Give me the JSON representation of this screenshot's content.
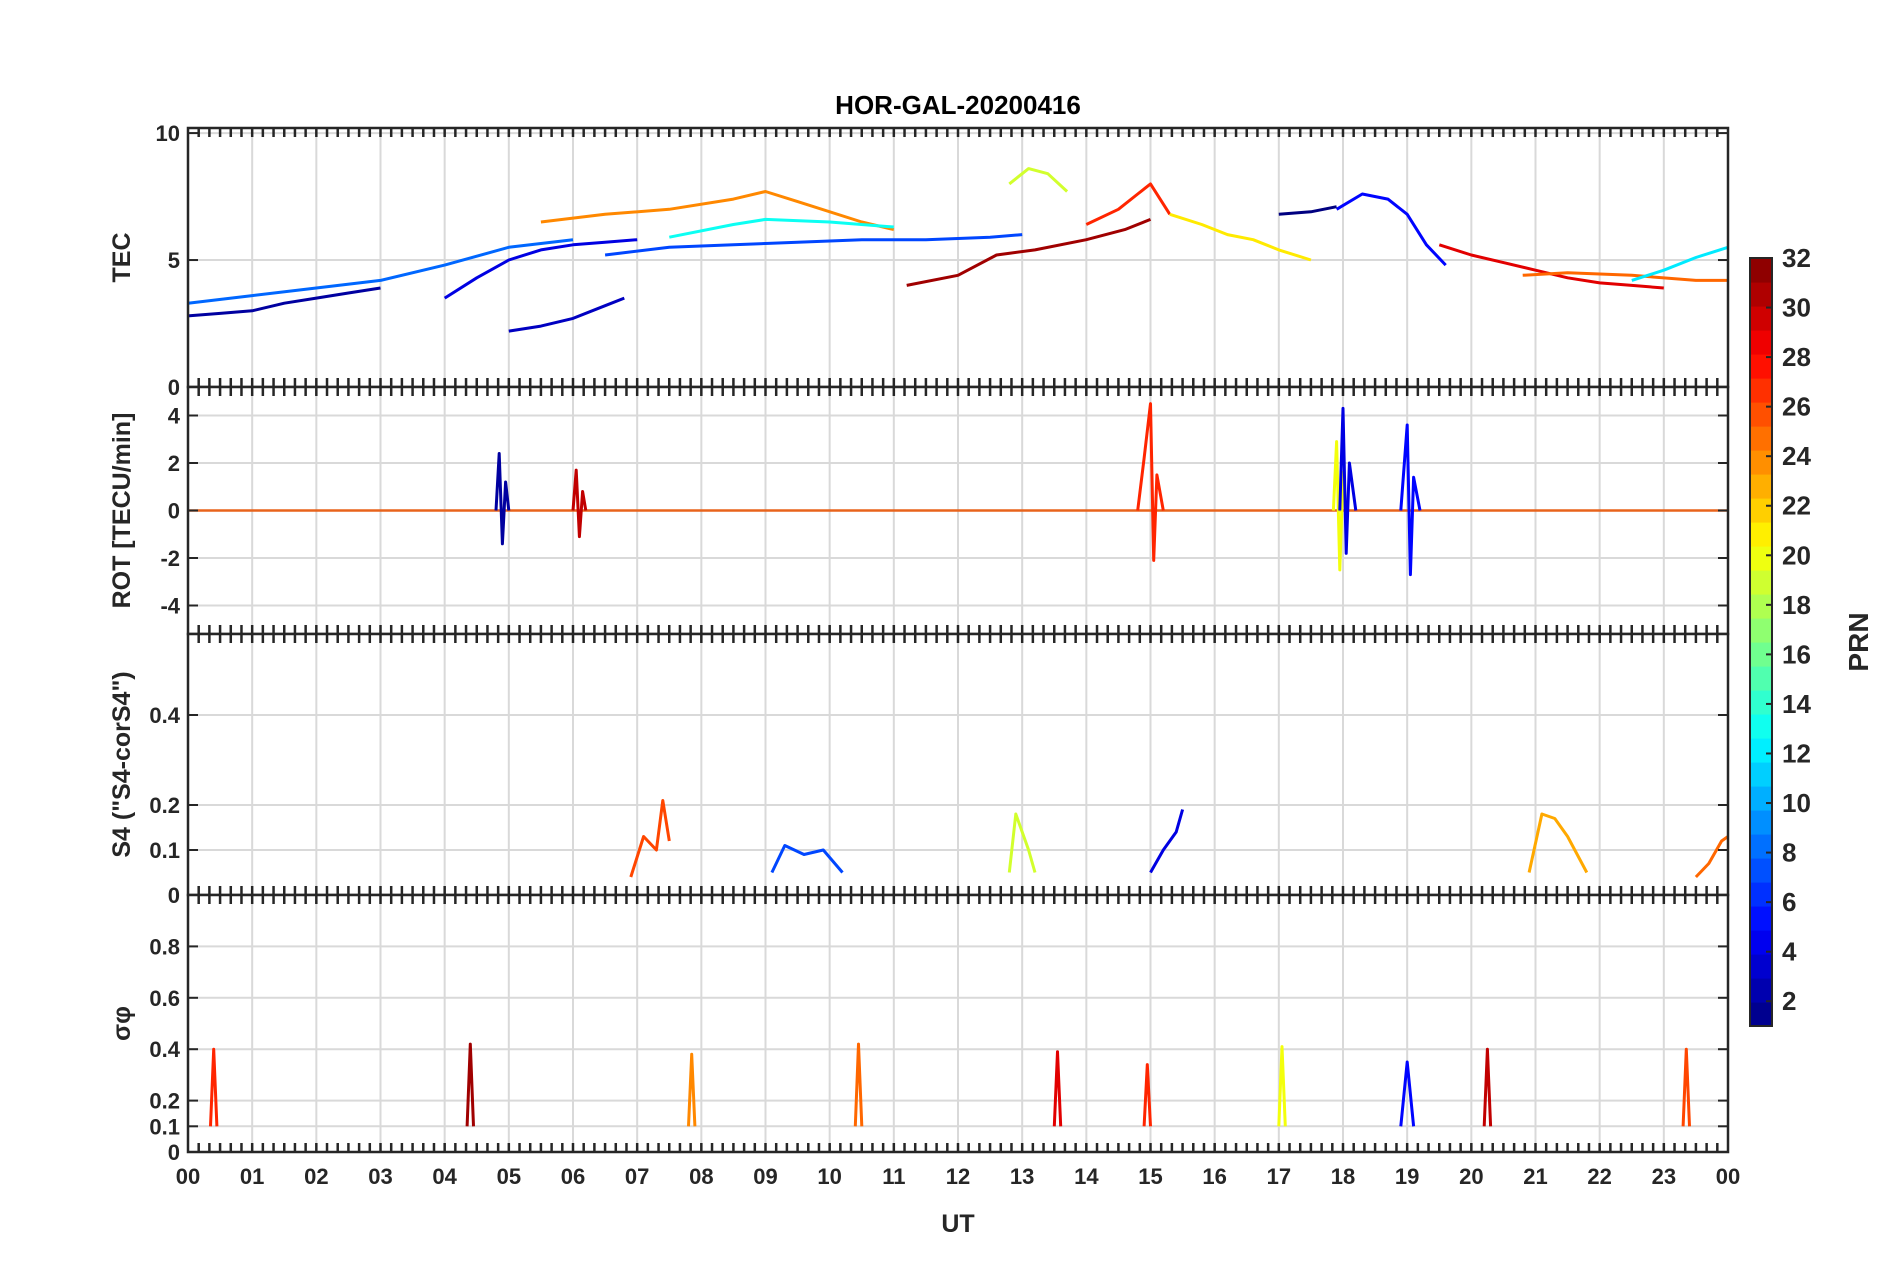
{
  "chart_data": {
    "type": "line",
    "title": "HOR-GAL-20200416",
    "xlabel": "UT",
    "x_ticks": [
      "00",
      "01",
      "02",
      "03",
      "04",
      "05",
      "06",
      "07",
      "08",
      "09",
      "10",
      "11",
      "12",
      "13",
      "14",
      "15",
      "16",
      "17",
      "18",
      "19",
      "20",
      "21",
      "22",
      "23",
      "00"
    ],
    "xlim": [
      0,
      24
    ],
    "grid": true,
    "panels": [
      {
        "id": "tec",
        "ylabel": "TEC",
        "ylim": [
          0,
          10.2
        ],
        "y_ticks": [
          0,
          5,
          10
        ],
        "series": [
          {
            "prn": 2,
            "x": [
              0,
              0.5,
              1,
              1.5,
              2,
              2.5,
              3
            ],
            "y": [
              2.8,
              2.9,
              3.0,
              3.3,
              3.5,
              3.7,
              3.9
            ]
          },
          {
            "prn": 4,
            "x": [
              4.0,
              4.5,
              5.0,
              5.5,
              6.0,
              6.5,
              7.0
            ],
            "y": [
              3.5,
              4.3,
              5.0,
              5.4,
              5.6,
              5.7,
              5.8
            ]
          },
          {
            "prn": 3,
            "x": [
              5.0,
              5.5,
              6.0,
              6.5,
              6.8
            ],
            "y": [
              2.2,
              2.4,
              2.7,
              3.2,
              3.5
            ]
          },
          {
            "prn": 8,
            "x": [
              0,
              1,
              2,
              3,
              4,
              5,
              6
            ],
            "y": [
              3.3,
              3.6,
              3.9,
              4.2,
              4.8,
              5.5,
              5.8
            ]
          },
          {
            "prn": 24,
            "x": [
              5.5,
              6.5,
              7.5,
              8.5,
              9.0,
              9.5,
              10.5,
              11.0
            ],
            "y": [
              6.5,
              6.8,
              7.0,
              7.4,
              7.7,
              7.3,
              6.5,
              6.2
            ]
          },
          {
            "prn": 7,
            "x": [
              6.5,
              7.5,
              8.5,
              9.5,
              10.5,
              11.5,
              12.5,
              13.0
            ],
            "y": [
              5.2,
              5.5,
              5.6,
              5.7,
              5.8,
              5.8,
              5.9,
              6.0
            ]
          },
          {
            "prn": 13,
            "x": [
              7.5,
              8.5,
              9.0,
              10.0,
              11.0
            ],
            "y": [
              5.9,
              6.4,
              6.6,
              6.5,
              6.3
            ]
          },
          {
            "prn": 31,
            "x": [
              11.2,
              12.0,
              12.6,
              13.2,
              14.0,
              14.6,
              15.0
            ],
            "y": [
              4.0,
              4.4,
              5.2,
              5.4,
              5.8,
              6.2,
              6.6
            ]
          },
          {
            "prn": 19,
            "x": [
              12.8,
              13.1,
              13.4,
              13.7
            ],
            "y": [
              8.0,
              8.6,
              8.4,
              7.7
            ]
          },
          {
            "prn": 27,
            "x": [
              14.0,
              14.5,
              14.8,
              15.0,
              15.3
            ],
            "y": [
              6.4,
              7.0,
              7.6,
              8.0,
              6.8
            ]
          },
          {
            "prn": 21,
            "x": [
              15.3,
              15.8,
              16.2,
              16.6,
              17.0,
              17.5
            ],
            "y": [
              6.8,
              6.4,
              6.0,
              5.8,
              5.4,
              5.0
            ]
          },
          {
            "prn": 5,
            "x": [
              17.9,
              18.3,
              18.7,
              19.0,
              19.3,
              19.6
            ],
            "y": [
              7.0,
              7.6,
              7.4,
              6.8,
              5.6,
              4.8
            ]
          },
          {
            "prn": 1,
            "x": [
              17.0,
              17.5,
              17.9
            ],
            "y": [
              6.8,
              6.9,
              7.1
            ]
          },
          {
            "prn": 29,
            "x": [
              19.5,
              20.0,
              20.5,
              21.0,
              21.5,
              22.0,
              22.5,
              23.0
            ],
            "y": [
              5.6,
              5.2,
              4.9,
              4.6,
              4.3,
              4.1,
              4.0,
              3.9
            ]
          },
          {
            "prn": 25,
            "x": [
              20.8,
              21.5,
              22.5,
              23.5,
              24.0
            ],
            "y": [
              4.4,
              4.5,
              4.4,
              4.2,
              4.2
            ]
          },
          {
            "prn": 12,
            "x": [
              22.5,
              23.0,
              23.5,
              24.0
            ],
            "y": [
              4.2,
              4.6,
              5.1,
              5.5
            ]
          }
        ]
      },
      {
        "id": "rot",
        "ylabel": "ROT [TECU/min]",
        "ylim": [
          -5.2,
          5.2
        ],
        "y_ticks": [
          -4,
          -2,
          0,
          2,
          4
        ],
        "series": [
          {
            "prn": 2,
            "x": [
              4.8,
              4.85,
              4.9,
              4.95,
              5.0
            ],
            "y": [
              0,
              2.4,
              -1.4,
              1.2,
              0
            ]
          },
          {
            "prn": 30,
            "x": [
              6.0,
              6.05,
              6.1,
              6.15,
              6.2
            ],
            "y": [
              0,
              1.7,
              -1.1,
              0.8,
              0
            ]
          },
          {
            "prn": 27,
            "x": [
              14.8,
              14.9,
              15.0,
              15.05,
              15.1,
              15.2
            ],
            "y": [
              0,
              2.2,
              4.5,
              -2.1,
              1.5,
              0
            ]
          },
          {
            "prn": 20,
            "x": [
              17.85,
              17.9,
              17.95,
              18.0,
              18.05
            ],
            "y": [
              0,
              2.9,
              -2.5,
              1.6,
              0
            ]
          },
          {
            "prn": 4,
            "x": [
              17.95,
              18.0,
              18.05,
              18.1,
              18.2
            ],
            "y": [
              0,
              4.3,
              -1.8,
              2.0,
              0
            ]
          },
          {
            "prn": 5,
            "x": [
              18.9,
              19.0,
              19.05,
              19.1,
              19.2
            ],
            "y": [
              0,
              3.6,
              -2.7,
              1.4,
              0
            ]
          }
        ]
      },
      {
        "id": "s4",
        "ylabel": "S4 (\"S4-corS4\")",
        "ylim": [
          0,
          0.58
        ],
        "y_ticks": [
          0,
          0.1,
          0.2,
          0.4
        ],
        "series": [
          {
            "prn": 26,
            "x": [
              6.9,
              7.1,
              7.3,
              7.4,
              7.5
            ],
            "y": [
              0.04,
              0.13,
              0.1,
              0.21,
              0.12
            ]
          },
          {
            "prn": 7,
            "x": [
              9.1,
              9.3,
              9.6,
              9.9,
              10.2
            ],
            "y": [
              0.05,
              0.11,
              0.09,
              0.1,
              0.05
            ]
          },
          {
            "prn": 19,
            "x": [
              12.8,
              12.9,
              13.0,
              13.1,
              13.2
            ],
            "y": [
              0.05,
              0.18,
              0.14,
              0.1,
              0.05
            ]
          },
          {
            "prn": 4,
            "x": [
              15.0,
              15.2,
              15.4,
              15.5
            ],
            "y": [
              0.05,
              0.1,
              0.14,
              0.19
            ]
          },
          {
            "prn": 23,
            "x": [
              20.9,
              21.1,
              21.3,
              21.5,
              21.8
            ],
            "y": [
              0.05,
              0.18,
              0.17,
              0.13,
              0.05
            ]
          },
          {
            "prn": 25,
            "x": [
              23.5,
              23.7,
              23.9,
              24.0
            ],
            "y": [
              0.04,
              0.07,
              0.12,
              0.13
            ]
          }
        ]
      },
      {
        "id": "sigphi",
        "ylabel": "σφ",
        "ylim": [
          0,
          1.0
        ],
        "y_ticks": [
          0,
          0.1,
          0.2,
          0.4,
          0.6,
          0.8
        ],
        "series": [
          {
            "prn": 27,
            "x": [
              0.35,
              0.4,
              0.45
            ],
            "y": [
              0.1,
              0.4,
              0.1
            ]
          },
          {
            "prn": 31,
            "x": [
              4.35,
              4.4,
              4.45
            ],
            "y": [
              0.1,
              0.42,
              0.1
            ]
          },
          {
            "prn": 24,
            "x": [
              7.8,
              7.85,
              7.9
            ],
            "y": [
              0.1,
              0.38,
              0.1
            ]
          },
          {
            "prn": 25,
            "x": [
              10.4,
              10.45,
              10.5
            ],
            "y": [
              0.1,
              0.42,
              0.1
            ]
          },
          {
            "prn": 29,
            "x": [
              13.5,
              13.55,
              13.6
            ],
            "y": [
              0.1,
              0.39,
              0.1
            ]
          },
          {
            "prn": 27,
            "x": [
              14.9,
              14.95,
              15.0
            ],
            "y": [
              0.1,
              0.34,
              0.1
            ]
          },
          {
            "prn": 20,
            "x": [
              17.0,
              17.05,
              17.1
            ],
            "y": [
              0.1,
              0.41,
              0.1
            ]
          },
          {
            "prn": 5,
            "x": [
              18.9,
              19.0,
              19.1
            ],
            "y": [
              0.1,
              0.35,
              0.1
            ]
          },
          {
            "prn": 30,
            "x": [
              20.2,
              20.25,
              20.3
            ],
            "y": [
              0.1,
              0.4,
              0.1
            ]
          },
          {
            "prn": 26,
            "x": [
              23.3,
              23.35,
              23.4
            ],
            "y": [
              0.1,
              0.4,
              0.1
            ]
          }
        ]
      }
    ],
    "colorbar": {
      "label": "PRN",
      "colormap": "jet",
      "clim": [
        1,
        32
      ],
      "ticks": [
        2,
        4,
        6,
        8,
        10,
        12,
        14,
        16,
        18,
        20,
        22,
        24,
        26,
        28,
        30,
        32
      ]
    }
  }
}
